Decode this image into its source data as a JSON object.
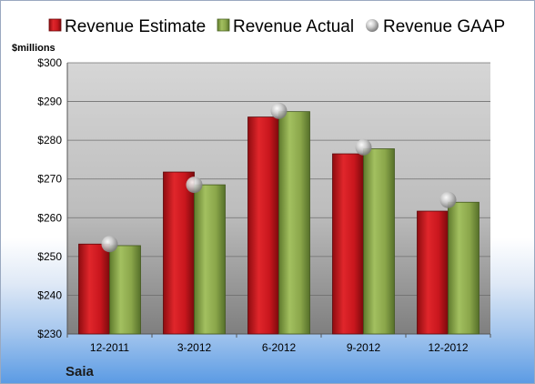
{
  "chart_data": {
    "type": "bar",
    "company": "Saia",
    "ylabel": "$millions",
    "categories": [
      "12-2011",
      "3-2012",
      "6-2012",
      "9-2012",
      "12-2012"
    ],
    "series": [
      {
        "name": "Revenue Estimate",
        "kind": "bar",
        "color": "#c8161d",
        "values": [
          253.2,
          271.8,
          286.0,
          276.5,
          261.7
        ]
      },
      {
        "name": "Revenue Actual",
        "kind": "bar",
        "color": "#8aa64a",
        "values": [
          252.8,
          268.5,
          287.4,
          277.8,
          264.0
        ]
      },
      {
        "name": "Revenue GAAP",
        "kind": "marker",
        "color": "#b8b8b8",
        "values": [
          253.2,
          268.5,
          287.6,
          278.2,
          264.6
        ]
      }
    ],
    "ylim": [
      230,
      300
    ],
    "yticks": [
      230,
      240,
      250,
      260,
      270,
      280,
      290,
      300
    ],
    "ytick_labels": [
      "$230",
      "$240",
      "$250",
      "$260",
      "$270",
      "$280",
      "$290",
      "$300"
    ],
    "grid": true,
    "legend_position": "top"
  }
}
